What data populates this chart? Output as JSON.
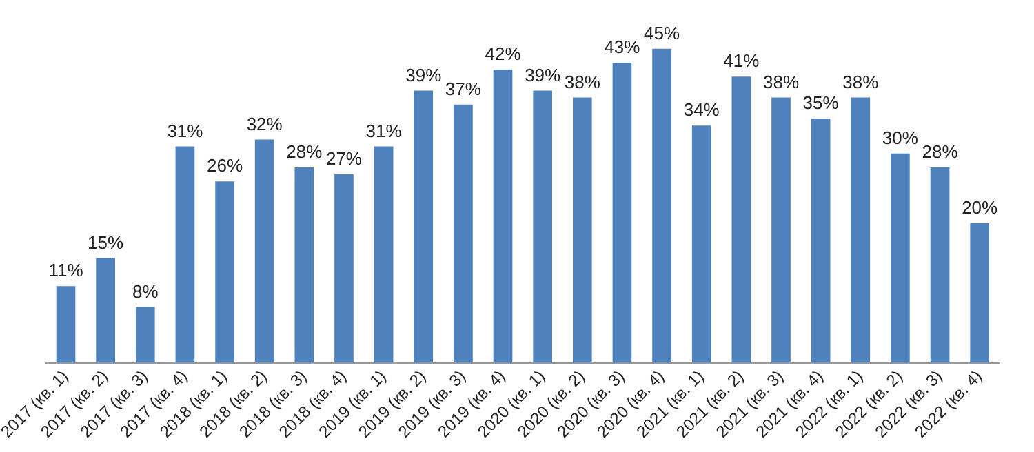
{
  "chart_data": {
    "type": "bar",
    "categories": [
      "2017 (кв. 1)",
      "2017 (кв. 2)",
      "2017 (кв. 3)",
      "2017 (кв. 4)",
      "2018 (кв. 1)",
      "2018 (кв. 2)",
      "2018 (кв. 3)",
      "2018 (кв. 4)",
      "2019 (кв. 1)",
      "2019 (кв. 2)",
      "2019 (кв. 3)",
      "2019 (кв. 4)",
      "2020 (кв. 1)",
      "2020 (кв. 2)",
      "2020 (кв. 3)",
      "2020 (кв. 4)",
      "2021 (кв. 1)",
      "2021 (кв. 2)",
      "2021 (кв. 3)",
      "2021 (кв. 4)",
      "2022 (кв. 1)",
      "2022 (кв. 2)",
      "2022 (кв. 3)",
      "2022 (кв. 4)"
    ],
    "values": [
      11,
      15,
      8,
      31,
      26,
      32,
      28,
      27,
      31,
      39,
      37,
      42,
      39,
      38,
      43,
      45,
      34,
      41,
      38,
      35,
      38,
      30,
      28,
      20
    ],
    "value_labels": [
      "11%",
      "15%",
      "8%",
      "31%",
      "26%",
      "32%",
      "28%",
      "27%",
      "31%",
      "39%",
      "37%",
      "42%",
      "39%",
      "38%",
      "43%",
      "45%",
      "34%",
      "41%",
      "38%",
      "35%",
      "38%",
      "30%",
      "28%",
      "20%"
    ],
    "color": "#4f81bd",
    "grid": false,
    "legend": false
  }
}
